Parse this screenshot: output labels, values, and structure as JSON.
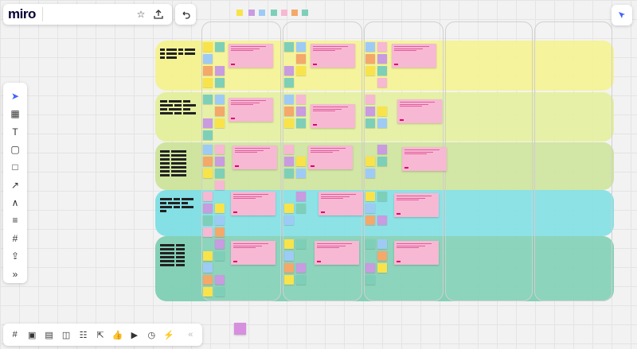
{
  "app": {
    "logo": "miro",
    "board_title": ""
  },
  "topbar": {
    "star_icon": "star-icon",
    "share_icon": "share-icon",
    "undo_icon": "undo-icon"
  },
  "sidebar_tools": [
    {
      "name": "select-tool",
      "glyph": "➤"
    },
    {
      "name": "templates-tool",
      "glyph": "▦"
    },
    {
      "name": "text-tool",
      "glyph": "T"
    },
    {
      "name": "sticky-note-tool",
      "glyph": "▢"
    },
    {
      "name": "shape-tool",
      "glyph": "□"
    },
    {
      "name": "connector-tool",
      "glyph": "↗"
    },
    {
      "name": "pen-tool",
      "glyph": "∧"
    },
    {
      "name": "comment-tool",
      "glyph": "≡"
    },
    {
      "name": "frame-tool",
      "glyph": "#"
    },
    {
      "name": "upload-tool",
      "glyph": "⇪"
    },
    {
      "name": "more-tools",
      "glyph": "»"
    }
  ],
  "bottom_tools": [
    {
      "name": "frames-icon",
      "glyph": "#"
    },
    {
      "name": "presentation-icon",
      "glyph": "▣"
    },
    {
      "name": "comments-icon",
      "glyph": "▤"
    },
    {
      "name": "chat-icon",
      "glyph": "◫"
    },
    {
      "name": "cards-icon",
      "glyph": "☷"
    },
    {
      "name": "share-screen-icon",
      "glyph": "⇱"
    },
    {
      "name": "voting-icon",
      "glyph": "👍"
    },
    {
      "name": "video-icon",
      "glyph": "▶"
    },
    {
      "name": "timer-icon",
      "glyph": "◷"
    },
    {
      "name": "reactions-icon",
      "glyph": "⚡"
    },
    {
      "name": "collapse-icon",
      "glyph": "«"
    }
  ],
  "colors": {
    "lane_yellow": "#f5f190",
    "lane_lime": "#e3ee9c",
    "lane_green": "#cde39a",
    "lane_cyan": "#7fdfe3",
    "lane_teal": "#7fcfb4",
    "note_pink": "#f7b8d3",
    "note_purple": "#c99be0",
    "note_yellow": "#f8e34b",
    "note_teal": "#7ecfb8",
    "note_blue": "#9ecbf5",
    "note_orange": "#f4a86a",
    "accent": "#4262ff"
  }
}
